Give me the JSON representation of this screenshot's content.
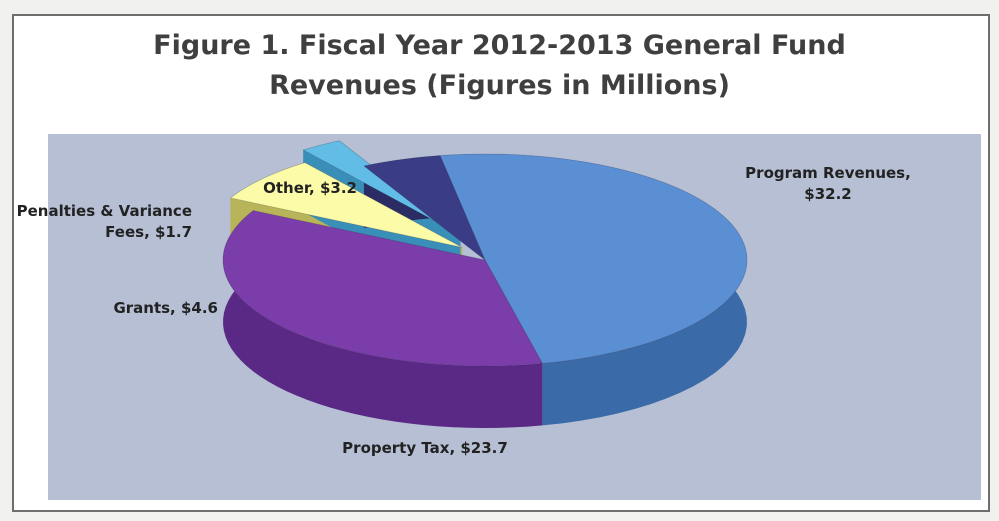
{
  "chart_data": {
    "type": "pie",
    "title_lines": [
      "Figure 1. Fiscal Year 2012-2013 General Fund",
      "Revenues (Figures in Millions)"
    ],
    "slices": [
      {
        "label_lines": [
          "Program Revenues,",
          "$32.2"
        ],
        "value": 32.2,
        "color": "#5b8fd4",
        "side": "#3a6aa8",
        "exploded": false
      },
      {
        "label_lines": [
          "Property Tax, $23.7"
        ],
        "value": 23.7,
        "color": "#7b3da9",
        "side": "#5a2885",
        "exploded": false
      },
      {
        "label_lines": [
          "Grants,  $4.6"
        ],
        "value": 4.6,
        "color": "#fbfba8",
        "side": "#b8b45a",
        "exploded": true
      },
      {
        "label_lines": [
          "Penalties & Variance",
          "Fees, $1.7"
        ],
        "value": 1.7,
        "color": "#62bde6",
        "side": "#3a8fb8",
        "exploded": true
      },
      {
        "label_lines": [
          "Other,  $3.2"
        ],
        "value": 3.2,
        "color": "#3a3d86",
        "side": "#2a2c63",
        "exploded": false
      }
    ]
  }
}
